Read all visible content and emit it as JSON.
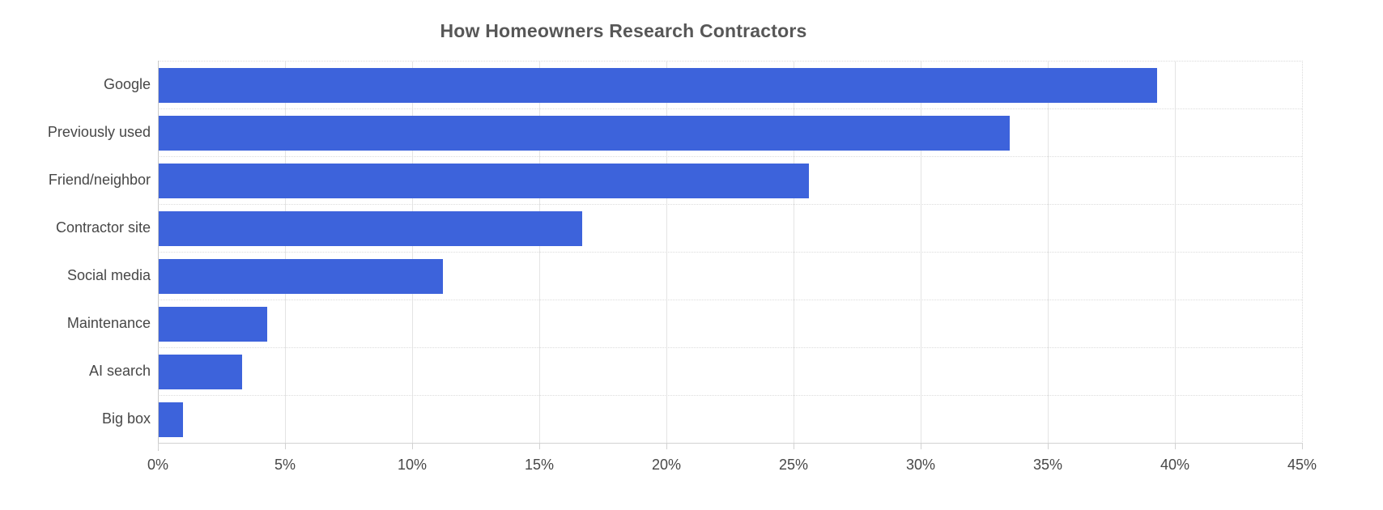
{
  "chart_data": {
    "type": "bar",
    "orientation": "horizontal",
    "title": "How Homeowners Research Contractors",
    "categories": [
      "Google",
      "Previously used",
      "Friend/neighbor",
      "Contractor site",
      "Social media",
      "Maintenance",
      "AI search",
      "Big box"
    ],
    "values": [
      39.3,
      33.5,
      25.6,
      16.7,
      11.2,
      4.3,
      3.3,
      1.0
    ],
    "unit": "%",
    "xlabel": "",
    "ylabel": "",
    "xlim": [
      0,
      45
    ],
    "x_ticks": [
      "0%",
      "5%",
      "10%",
      "15%",
      "20%",
      "25%",
      "30%",
      "35%",
      "40%",
      "45%"
    ],
    "grid": true,
    "legend": "none",
    "bar_color": "#3D63DB",
    "gridline_color": "#e4e4e4",
    "row_separator_color": "#dcdcdc",
    "axis_line_color": "#c9c9c9",
    "tick_text_color": "#474747",
    "title_color": "#575757",
    "background": "#ffffff"
  }
}
